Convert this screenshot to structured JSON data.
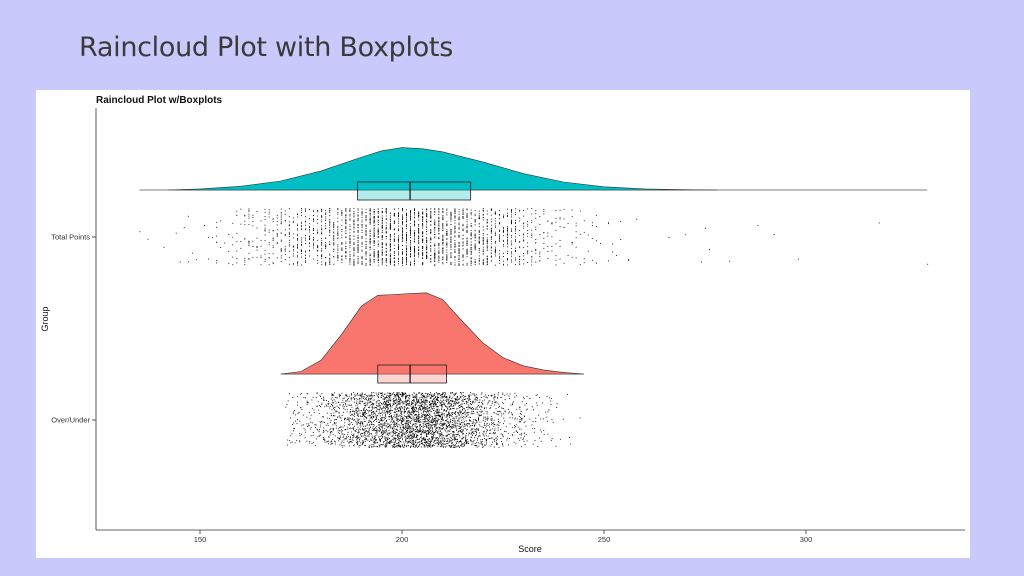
{
  "slide": {
    "title": "Raincloud Plot with Boxplots"
  },
  "colors": {
    "background": "#c9c9fb",
    "total_points": "#00bfc4",
    "over_under": "#f8766d"
  },
  "chart_data": {
    "type": "raincloud",
    "title": "Raincloud Plot w/Boxplots",
    "xlabel": "Score",
    "ylabel": "Group",
    "xlim": [
      135,
      330
    ],
    "x_ticks": [
      150,
      200,
      250,
      300
    ],
    "x_tick_labels": [
      "150",
      "200",
      "250",
      "300"
    ],
    "grid": false,
    "legend": "none",
    "categories": [
      "Over/Under",
      "Total Points"
    ],
    "series": [
      {
        "name": "Total Points",
        "color": "#00bfc4",
        "x_range": [
          135,
          330
        ],
        "density_curve": {
          "x": [
            142,
            150,
            160,
            170,
            180,
            190,
            195,
            200,
            205,
            210,
            220,
            230,
            240,
            250,
            260,
            270,
            278
          ],
          "y": [
            0.0,
            0.02,
            0.07,
            0.17,
            0.36,
            0.62,
            0.74,
            0.8,
            0.78,
            0.72,
            0.53,
            0.31,
            0.15,
            0.06,
            0.02,
            0.005,
            0.0
          ]
        },
        "boxplot": {
          "q1": 189,
          "median": 202,
          "q3": 217
        },
        "points_range": [
          135,
          330
        ]
      },
      {
        "name": "Over/Under",
        "color": "#f8766d",
        "x_range": [
          170,
          245
        ],
        "density_curve": {
          "x": [
            170,
            175,
            180,
            185,
            190,
            194,
            198,
            202,
            206,
            210,
            215,
            220,
            225,
            230,
            235,
            240,
            245
          ],
          "y": [
            0.0,
            0.03,
            0.17,
            0.48,
            0.83,
            0.96,
            0.97,
            0.98,
            0.99,
            0.91,
            0.64,
            0.38,
            0.2,
            0.1,
            0.05,
            0.02,
            0.0
          ]
        },
        "boxplot": {
          "q1": 194,
          "median": 202,
          "q3": 211
        },
        "points_range": [
          171,
          245
        ]
      }
    ]
  }
}
